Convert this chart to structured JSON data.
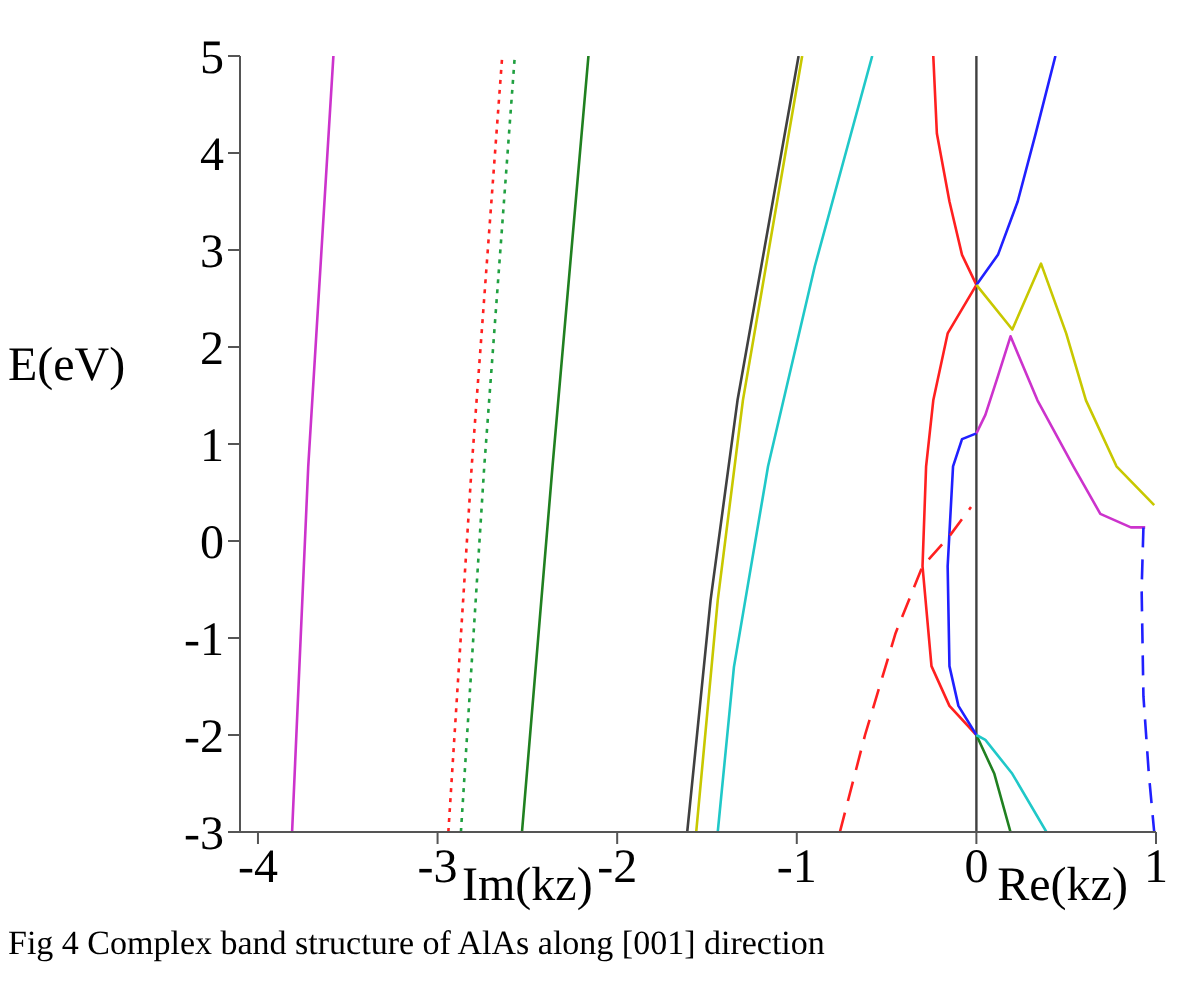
{
  "chart_data": {
    "type": "line",
    "title": "Fig 4 Complex band structure of AlAs along [001] direction",
    "xlabel": "Im(kz)",
    "ylabel": "E(eV)",
    "annotations": [
      "Re(kz)"
    ],
    "xlim": [
      -4.1,
      1
    ],
    "xticks": [
      -4,
      -3,
      -2,
      -1,
      0,
      1
    ],
    "ylim": [
      -3,
      5
    ],
    "yticks": [
      -3,
      -2,
      -1,
      0,
      1,
      2,
      3,
      4,
      5
    ],
    "grid": false,
    "legend": false,
    "marker": "none",
    "ref_lines": [
      {
        "axis": "x",
        "value": 0,
        "color": "#404040"
      }
    ],
    "series": [
      {
        "color": "#cc33cc",
        "line_style": "solid",
        "x": [
          -3.81,
          -3.72,
          -3.58
        ],
        "values": [
          -3,
          0.77,
          5
        ]
      },
      {
        "color": "#ff2020",
        "line_style": "dotted",
        "x": [
          -2.94,
          -2.81,
          -2.64
        ],
        "values": [
          -3,
          0.77,
          5
        ]
      },
      {
        "color": "#20a040",
        "line_style": "dotted",
        "x": [
          -2.87,
          -2.74,
          -2.57
        ],
        "values": [
          -3,
          0.77,
          5
        ]
      },
      {
        "color": "#208020",
        "line_style": "solid",
        "x": [
          -2.53,
          -2.36,
          -2.16
        ],
        "values": [
          -3,
          0.77,
          5
        ]
      },
      {
        "color": "#404040",
        "line_style": "solid",
        "x": [
          -1.61,
          -1.48,
          -1.33,
          -0.99
        ],
        "values": [
          -3,
          -0.61,
          1.45,
          5
        ]
      },
      {
        "color": "#c8c800",
        "line_style": "solid",
        "x": [
          -1.56,
          -1.44,
          -1.3,
          -0.97
        ],
        "values": [
          -3,
          -0.61,
          1.45,
          5
        ]
      },
      {
        "color": "#20c8c8",
        "line_style": "solid",
        "x": [
          -1.44,
          -1.35,
          -1.16,
          -0.9,
          -0.58
        ],
        "values": [
          -3,
          -1.3,
          0.77,
          2.83,
          5
        ]
      },
      {
        "color": "#ff2020",
        "line_style": "solid",
        "x": [
          -0.24,
          -0.22,
          -0.15,
          -0.08,
          0,
          -0.16,
          -0.24,
          -0.28,
          -0.3,
          -0.25,
          -0.15,
          0
        ],
        "values": [
          5,
          4.2,
          3.5,
          2.95,
          2.64,
          2.14,
          1.45,
          0.77,
          -0.26,
          -1.29,
          -1.7,
          -2
        ]
      },
      {
        "color": "#2020ff",
        "line_style": "solid",
        "x": [
          0,
          0.12,
          0.23,
          0.33,
          0.44
        ],
        "values": [
          2.64,
          2.95,
          3.5,
          4.2,
          5
        ]
      },
      {
        "color": "#2020ff",
        "line_style": "solid",
        "x": [
          0,
          -0.08,
          -0.13,
          -0.16,
          -0.15,
          -0.1,
          0
        ],
        "values": [
          1.11,
          1.05,
          0.77,
          -0.26,
          -1.29,
          -1.7,
          -2
        ]
      },
      {
        "color": "#cc33cc",
        "line_style": "solid",
        "x": [
          0,
          0.05,
          0.12,
          0.19,
          0.34,
          0.54,
          0.69,
          0.86,
          0.94
        ],
        "values": [
          1.11,
          1.3,
          1.7,
          2.11,
          1.45,
          0.77,
          0.28,
          0.14,
          0.14
        ]
      },
      {
        "color": "#c8c800",
        "line_style": "solid",
        "x": [
          0,
          0.2,
          0.36,
          0.5,
          0.61,
          0.78,
          0.99
        ],
        "values": [
          2.64,
          2.18,
          2.86,
          2.14,
          1.45,
          0.77,
          0.37
        ]
      },
      {
        "color": "#2020ff",
        "line_style": "dashed",
        "x": [
          0.93,
          0.92,
          0.93,
          0.96,
          0.99
        ],
        "values": [
          0.14,
          -0.5,
          -1.6,
          -2.4,
          -3
        ]
      },
      {
        "color": "#ff2020",
        "line_style": "dashed",
        "x": [
          -0.76,
          -0.62,
          -0.45,
          -0.3,
          -0.15,
          -0.03
        ],
        "values": [
          -3,
          -2,
          -0.95,
          -0.26,
          0.05,
          0.35
        ]
      },
      {
        "color": "#208020",
        "line_style": "solid",
        "x": [
          0,
          0.1,
          0.19
        ],
        "values": [
          -2,
          -2.4,
          -3
        ]
      },
      {
        "color": "#20c8c8",
        "line_style": "solid",
        "x": [
          0,
          0.05,
          0.2,
          0.39
        ],
        "values": [
          -2,
          -2.05,
          -2.4,
          -3
        ]
      }
    ]
  }
}
